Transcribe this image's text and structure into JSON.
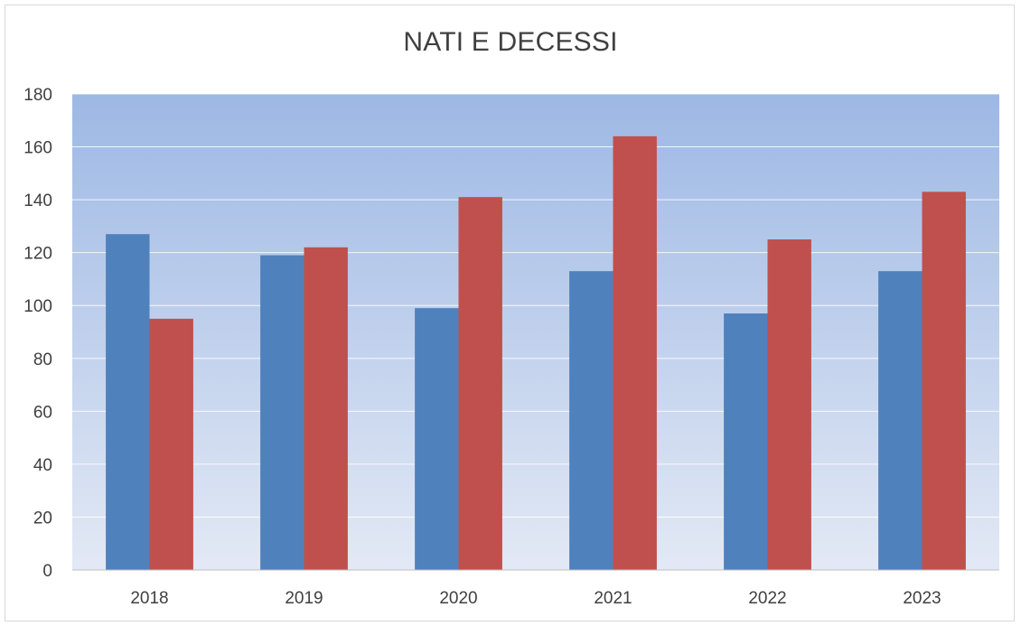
{
  "chart_data": {
    "type": "bar",
    "title": "NATI E DECESSI",
    "categories": [
      "2018",
      "2019",
      "2020",
      "2021",
      "2022",
      "2023"
    ],
    "series": [
      {
        "values": [
          127,
          119,
          99,
          113,
          97,
          113
        ],
        "color": "#4f81bd"
      },
      {
        "values": [
          95,
          122,
          141,
          164,
          125,
          143
        ],
        "color": "#c0504d"
      }
    ],
    "ylim": [
      0,
      180
    ],
    "yticks": [
      0,
      20,
      40,
      60,
      80,
      100,
      120,
      140,
      160,
      180
    ],
    "grid": true,
    "legend": "none",
    "plot_background": {
      "top": "#9db8e4",
      "bottom": "#e3e9f5"
    }
  }
}
